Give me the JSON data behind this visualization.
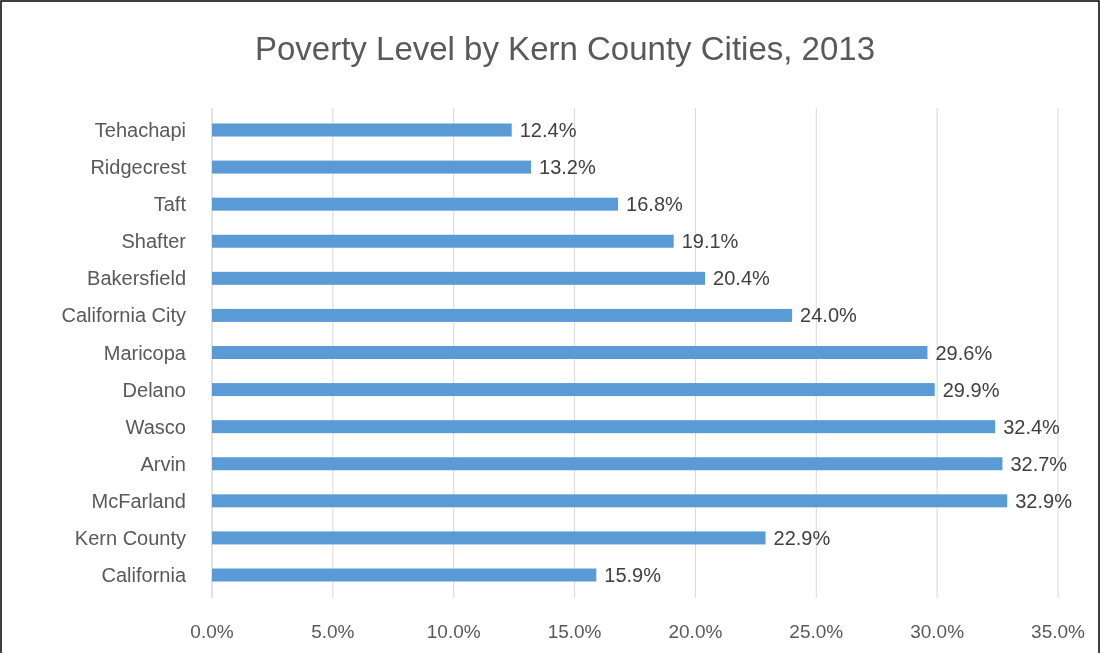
{
  "chart_data": {
    "type": "bar",
    "orientation": "horizontal",
    "title": "Poverty Level by Kern County Cities, 2013",
    "categories": [
      "Tehachapi",
      "Ridgecrest",
      "Taft",
      "Shafter",
      "Bakersfield",
      "California City",
      "Maricopa",
      "Delano",
      "Wasco",
      "Arvin",
      "McFarland",
      "Kern County",
      "California"
    ],
    "values": [
      12.4,
      13.2,
      16.8,
      19.1,
      20.4,
      24.0,
      29.6,
      29.9,
      32.4,
      32.7,
      32.9,
      22.9,
      15.9
    ],
    "value_labels": [
      "12.4%",
      "13.2%",
      "16.8%",
      "19.1%",
      "20.4%",
      "24.0%",
      "29.6%",
      "29.9%",
      "32.4%",
      "32.7%",
      "32.9%",
      "22.9%",
      "15.9%"
    ],
    "color": "#5b9bd5",
    "xlim": [
      0,
      35
    ],
    "xticks": [
      {
        "value": 0,
        "label": "0.0%"
      },
      {
        "value": 5,
        "label": "5.0%"
      },
      {
        "value": 10,
        "label": "10.0%"
      },
      {
        "value": 15,
        "label": "15.0%"
      },
      {
        "value": 20,
        "label": "20.0%"
      },
      {
        "value": 25,
        "label": "25.0%"
      },
      {
        "value": 30,
        "label": "30.0%"
      },
      {
        "value": 35,
        "label": "35.0%"
      }
    ],
    "grid": "x"
  }
}
